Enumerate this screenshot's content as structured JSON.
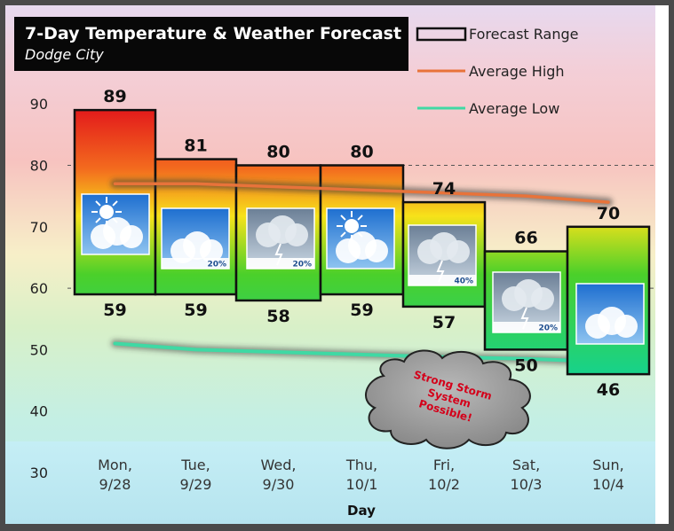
{
  "chart_data": {
    "type": "bar",
    "title": "7-Day Temperature & Weather Forecast",
    "subtitle": "Dodge City",
    "xlabel": "Day",
    "ylabel": "",
    "ylim": [
      30,
      95
    ],
    "yticks": [
      30,
      40,
      50,
      60,
      70,
      80,
      90
    ],
    "grid": "dashed at 60 and 80",
    "legend_position": "top-right",
    "legend": {
      "range": "Forecast Range",
      "avg_high": "Average High",
      "avg_low": "Average Low"
    },
    "categories": [
      {
        "day": "Mon,",
        "date": "9/28"
      },
      {
        "day": "Tue,",
        "date": "9/29"
      },
      {
        "day": "Wed,",
        "date": "9/30"
      },
      {
        "day": "Thu,",
        "date": "10/1"
      },
      {
        "day": "Fri,",
        "date": "10/2"
      },
      {
        "day": "Sat,",
        "date": "10/3"
      },
      {
        "day": "Sun,",
        "date": "10/4"
      }
    ],
    "series": [
      {
        "name": "Forecast Range",
        "high": [
          89,
          81,
          80,
          80,
          74,
          66,
          70
        ],
        "low": [
          59,
          59,
          58,
          59,
          57,
          50,
          46
        ]
      },
      {
        "name": "Average High",
        "values": [
          77,
          77,
          76.5,
          76,
          75.5,
          75,
          74
        ]
      },
      {
        "name": "Average Low",
        "values": [
          51,
          50,
          49.6,
          49.2,
          48.8,
          48.5,
          48
        ]
      }
    ],
    "weather_icons": [
      {
        "icon": "sunny-icon",
        "precip": ""
      },
      {
        "icon": "partly-cloudy-icon",
        "precip": "20%"
      },
      {
        "icon": "thunderstorm-icon",
        "precip": "20%"
      },
      {
        "icon": "sunny-clouds-icon",
        "precip": ""
      },
      {
        "icon": "thunderstorm-icon",
        "precip": "40%"
      },
      {
        "icon": "thunderstorm-icon",
        "precip": "20%"
      },
      {
        "icon": "partly-cloudy-icon",
        "precip": ""
      }
    ],
    "annotation": "Strong Storm System Possible!",
    "colors": {
      "avg_high": "#e8733a",
      "avg_low": "#3fd9a4",
      "hot": "#e31b1b",
      "warm": "#f7e21a",
      "mild": "#4bd02a",
      "cool": "#16d28c",
      "text": "#111111",
      "storm_text": "#d4001a"
    }
  }
}
